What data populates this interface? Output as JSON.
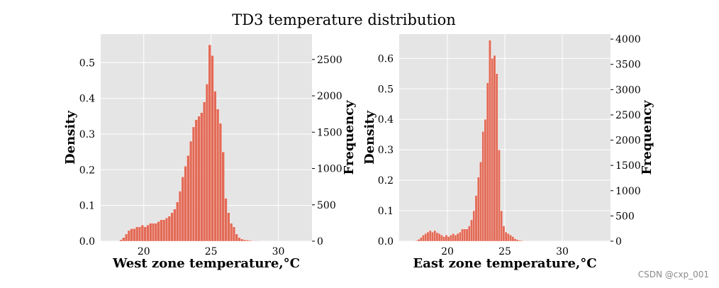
{
  "figure": {
    "title": "TD3 temperature distribution",
    "watermark": "CSDN @cxp_001",
    "bar_color": "#E2604A",
    "background_color": "#E5E5E5",
    "grid": true
  },
  "chart_data": [
    {
      "type": "bar",
      "xlabel": "West zone temperature,°C",
      "ylabel": "Density",
      "ylabel_right": "Frequency",
      "xlim": [
        16.8,
        32.5
      ],
      "ylim": [
        0,
        0.58
      ],
      "ylim_right": [
        0,
        2850
      ],
      "xticks": [
        20,
        25,
        30
      ],
      "yticks": [
        0.0,
        0.1,
        0.2,
        0.3,
        0.4,
        0.5
      ],
      "yticks_right": [
        0,
        500,
        1000,
        1500,
        2000,
        2500
      ],
      "bin_start": 18.2,
      "bin_width": 0.2,
      "values": [
        0.004,
        0.01,
        0.02,
        0.03,
        0.035,
        0.035,
        0.04,
        0.04,
        0.045,
        0.04,
        0.045,
        0.05,
        0.05,
        0.05,
        0.055,
        0.06,
        0.06,
        0.065,
        0.07,
        0.08,
        0.09,
        0.11,
        0.14,
        0.18,
        0.21,
        0.24,
        0.28,
        0.32,
        0.34,
        0.35,
        0.36,
        0.39,
        0.44,
        0.55,
        0.52,
        0.42,
        0.37,
        0.33,
        0.25,
        0.12,
        0.08,
        0.05,
        0.04,
        0.02,
        0.01,
        0.006,
        0.004,
        0.003,
        0.002,
        0.001,
        0.001,
        0.001,
        0.0005,
        0.0005,
        0.0005
      ]
    },
    {
      "type": "bar",
      "xlabel": "East zone temperature,°C",
      "ylabel": "Density",
      "ylabel_right": "Frequency",
      "xlim": [
        15.8,
        34.2
      ],
      "ylim": [
        0,
        0.68
      ],
      "ylim_right": [
        0,
        4100
      ],
      "xticks": [
        20,
        25,
        30
      ],
      "yticks": [
        0.0,
        0.1,
        0.2,
        0.3,
        0.4,
        0.5,
        0.6
      ],
      "yticks_right": [
        0,
        500,
        1000,
        1500,
        2000,
        2500,
        3000,
        3500,
        4000
      ],
      "bin_start": 17.2,
      "bin_width": 0.2,
      "values": [
        0.002,
        0.006,
        0.012,
        0.02,
        0.025,
        0.03,
        0.035,
        0.03,
        0.035,
        0.028,
        0.025,
        0.02,
        0.015,
        0.02,
        0.015,
        0.02,
        0.025,
        0.02,
        0.025,
        0.03,
        0.04,
        0.04,
        0.04,
        0.05,
        0.07,
        0.1,
        0.15,
        0.21,
        0.26,
        0.36,
        0.4,
        0.52,
        0.66,
        0.6,
        0.61,
        0.55,
        0.3,
        0.1,
        0.05,
        0.03,
        0.025,
        0.02,
        0.015,
        0.008,
        0.005,
        0.003,
        0.002,
        0.001,
        0.001,
        0.001,
        0.0005,
        0.0005,
        0.0005,
        0.0005,
        0.0005
      ]
    }
  ]
}
